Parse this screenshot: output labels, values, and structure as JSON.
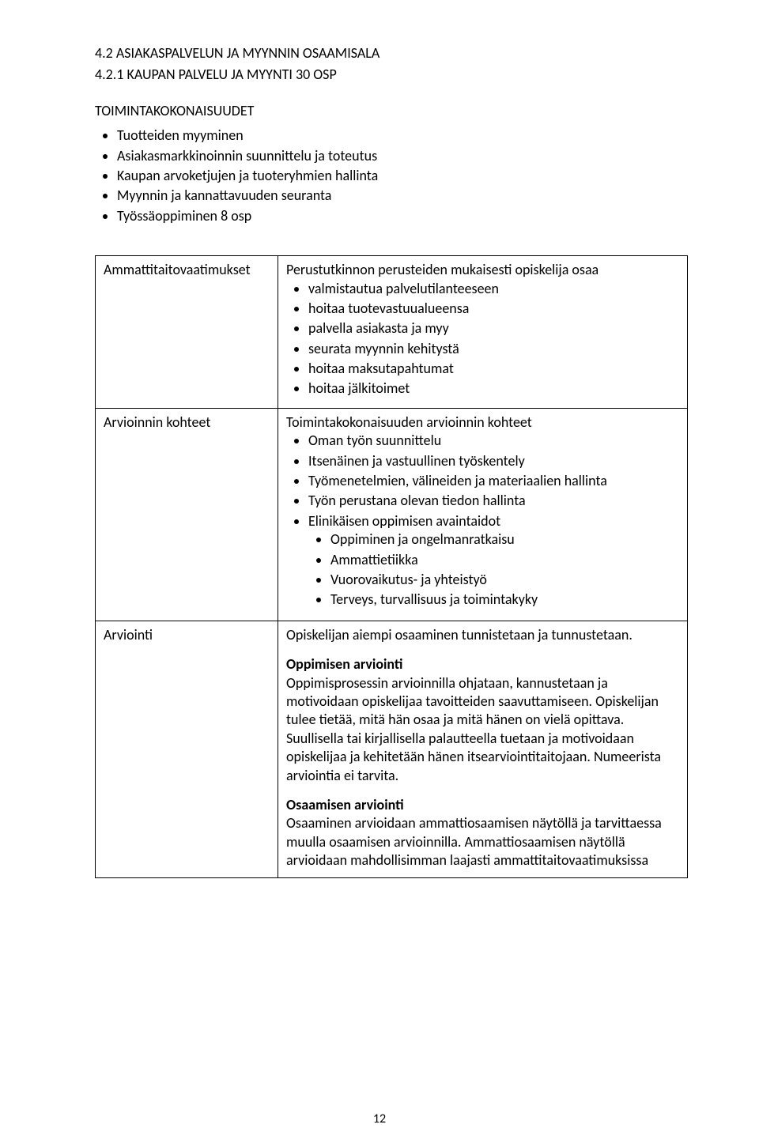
{
  "heading": "4.2 ASIAKASPALVELUN JA MYYNNIN OSAAMISALA",
  "subheading": "4.2.1 KAUPAN PALVELU JA MYYNTI 30 OSP",
  "block_title": "TOIMINTAKOKONAISUUDET",
  "blocks": [
    "Tuotteiden myyminen",
    "Asiakasmarkkinoinnin suunnittelu ja toteutus",
    "Kaupan arvoketjujen ja tuoteryhmien hallinta",
    "Myynnin ja kannattavuuden seuranta",
    "Työssäoppiminen 8 osp"
  ],
  "rows": {
    "req": {
      "label": "Ammattitaitovaatimukset",
      "lead": "Perustutkinnon perusteiden mukaisesti opiskelija osaa",
      "items": [
        "valmistautua palvelutilanteeseen",
        "hoitaa tuotevastuualueensa",
        "palvella asiakasta ja myy",
        "seurata myynnin kehitystä",
        "hoitaa maksutapahtumat",
        "hoitaa jälkitoimet"
      ]
    },
    "targets": {
      "label": "Arvioinnin kohteet",
      "lead": "Toimintakokonaisuuden arvioinnin kohteet",
      "items": [
        "Oman työn suunnittelu",
        "Itsenäinen ja vastuullinen työskentely",
        "Työmenetelmien, välineiden ja materiaalien hallinta",
        "Työn perustana olevan tiedon hallinta",
        "Elinikäisen oppimisen avaintaidot"
      ],
      "sub": [
        "Oppiminen ja ongelmanratkaisu",
        "Ammattietiikka",
        "Vuorovaikutus- ja yhteistyö",
        "Terveys, turvallisuus ja toimintakyky"
      ]
    },
    "assessment": {
      "label": "Arviointi",
      "intro": "Opiskelijan aiempi osaaminen tunnistetaan ja tunnustetaan.",
      "p1_title": "Oppimisen arviointi",
      "p1": "Oppimisprosessin arvioinnilla ohjataan, kannustetaan ja motivoidaan opiskelijaa tavoitteiden saavuttamiseen. Opiskelijan tulee tietää, mitä hän osaa ja mitä hänen on vielä opittava. Suullisella tai kirjallisella palautteella tuetaan ja motivoidaan opiskelijaa ja kehitetään hänen itsearviointitaitojaan. Numeerista arviointia ei tarvita.",
      "p2_title": "Osaamisen arviointi",
      "p2": "Osaaminen arvioidaan ammattiosaamisen näytöllä ja tarvittaessa muulla osaamisen arvioinnilla. Ammattiosaamisen näytöllä arvioidaan mahdollisimman laajasti ammattitaitovaatimuksissa"
    }
  },
  "page_number": "12"
}
